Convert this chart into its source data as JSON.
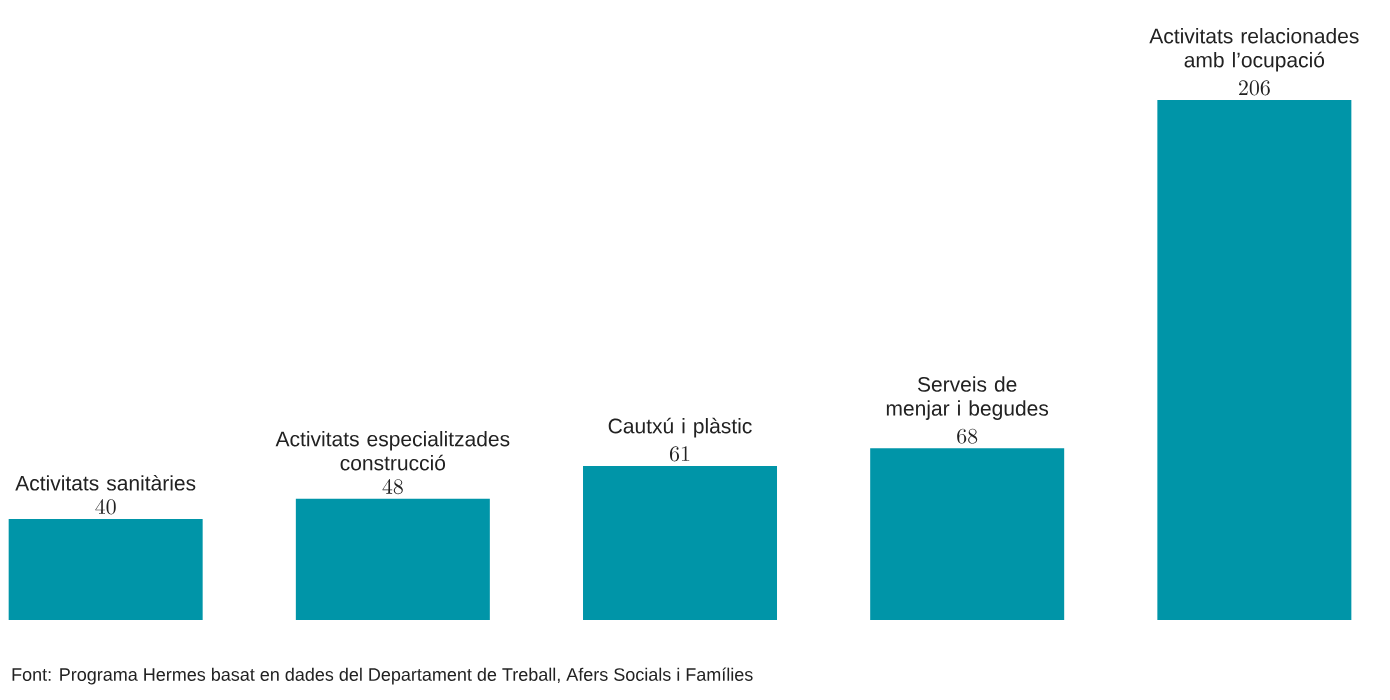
{
  "chart_data": {
    "type": "bar",
    "categories": [
      "Activitats sanitàries",
      "Activitats especialitzades construcció",
      "Cautxú i plàstic",
      "Serveis de menjar i begudes",
      "Activitats relacionades amb l’ocupació"
    ],
    "values": [
      40,
      48,
      61,
      68,
      206
    ],
    "color": "#0095a8",
    "data_labels": true,
    "annotations": [
      "Font: Programa Hermes basat en dades del Departament de Treball, Afers Socials i Famílies"
    ]
  }
}
